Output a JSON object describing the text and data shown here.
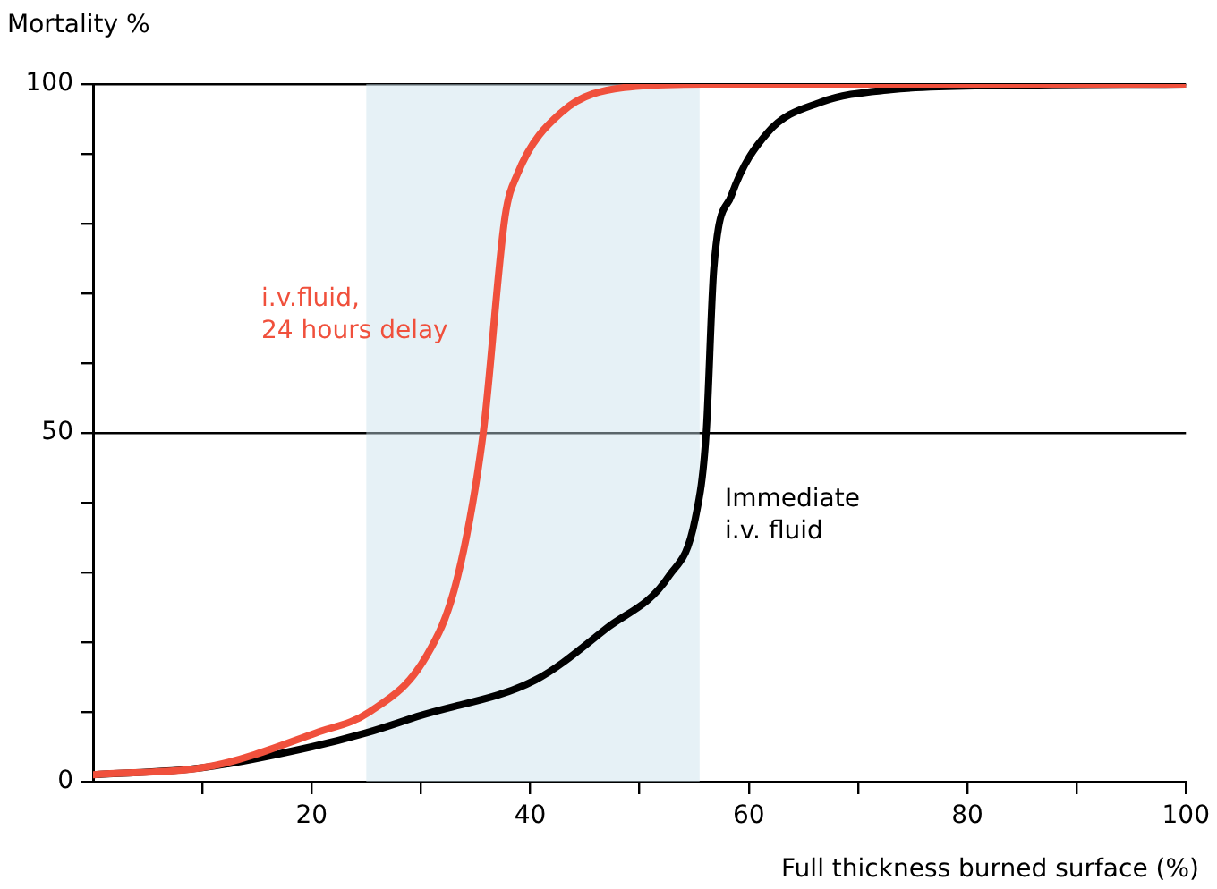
{
  "chart_data": {
    "type": "line",
    "xlabel": "Full thickness burned surface (%)",
    "ylabel": "Mortality %",
    "xlim": [
      0,
      100
    ],
    "ylim": [
      0,
      100
    ],
    "xticks": [
      {
        "value": 10,
        "label": null
      },
      20,
      {
        "value": 30,
        "label": null
      },
      40,
      {
        "value": 50,
        "label": null
      },
      60,
      {
        "value": 70,
        "label": null
      },
      80,
      {
        "value": 90,
        "label": null
      },
      100
    ],
    "yticks": [
      0,
      {
        "value": 10,
        "label": null
      },
      {
        "value": 20,
        "label": null
      },
      {
        "value": 30,
        "label": null
      },
      {
        "value": 40,
        "label": null
      },
      50,
      {
        "value": 60,
        "label": null
      },
      {
        "value": 70,
        "label": null
      },
      {
        "value": 80,
        "label": null
      },
      {
        "value": 90,
        "label": null
      },
      100
    ],
    "grid": "y",
    "marker": "none",
    "line_style": "solid",
    "bands": [
      {
        "axis": "x",
        "from": 25,
        "to": 55.5,
        "color": "#c8e1ec"
      }
    ],
    "series": [
      {
        "name": "Immediate\ni.v. fluid",
        "color": "#000000",
        "x": [
          0,
          10,
          20,
          25,
          30,
          40.5,
          47,
          52.7,
          55.1,
          56.1,
          56.8,
          58.4,
          61.7,
          66.6,
          73,
          83,
          100
        ],
        "values": [
          1,
          2,
          5,
          7,
          9.5,
          14.6,
          22,
          29.5,
          37.7,
          50,
          73.6,
          84,
          93,
          97.4,
          99.2,
          99.8,
          100
        ]
      },
      {
        "name": "i.v.fluid,\n24 hours delay",
        "color": "#f0503c",
        "x": [
          0,
          11,
          20.4,
          25.3,
          30.5,
          33.3,
          35.7,
          37.7,
          38.8,
          42.9,
          48.6,
          55.8,
          70,
          100
        ],
        "values": [
          1,
          2.3,
          7,
          10,
          18,
          29,
          50,
          81,
          87,
          96,
          99.5,
          100,
          100,
          100
        ]
      }
    ]
  }
}
